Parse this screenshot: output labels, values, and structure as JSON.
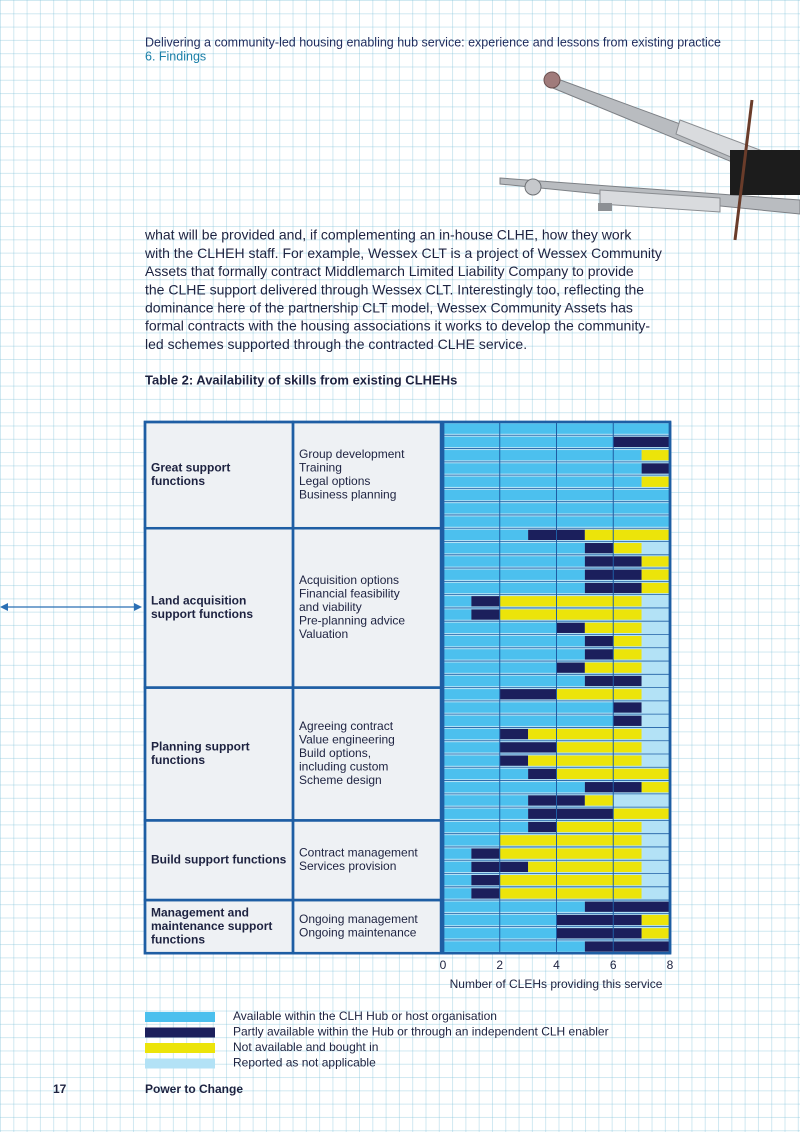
{
  "header": {
    "title": "Delivering a community-led housing enabling hub service: experience and lessons from existing practice",
    "section": "6. Findings"
  },
  "body": {
    "lines": [
      "what will be provided and, if complementing an in-house CLHE, how they work",
      "with the CLHEH staff. For example, Wessex CLT is a project of Wessex Community",
      "Assets that formally contract Middlemarch Limited Liability Company to provide",
      "the CLHE support delivered through Wessex CLT.  Interestingly too, reflecting the",
      "dominance here of the partnership CLT model, Wessex Community Assets has",
      "formal contracts with the housing associations it works to develop the community-",
      "led schemes supported through the contracted CLHE service."
    ]
  },
  "chart_data": {
    "type": "stacked-bar-horizontal",
    "title": "Table 2: Availability of skills from existing CLHEHs",
    "xlabel": "Number of CLEHs providing this service",
    "xlim": [
      0,
      8
    ],
    "xticks": [
      0,
      2,
      4,
      6,
      8
    ],
    "groups": [
      {
        "label": [
          "Great support",
          "functions"
        ],
        "functions": [
          "Group development",
          "Training",
          "Legal options",
          "Business planning"
        ],
        "categories": [
          null,
          null,
          null,
          null,
          null,
          null,
          null,
          null
        ]
      },
      {
        "label": [
          "Land acquisition",
          "support functions"
        ],
        "functions": [
          "Acquisition options",
          "Financial feasibility",
          "and viability",
          "Pre-planning advice",
          "Valuation"
        ],
        "categories": [
          null,
          null,
          null,
          null,
          null,
          null,
          null,
          null,
          null,
          null,
          null,
          null
        ]
      },
      {
        "label": [
          "Planning support",
          "functions"
        ],
        "functions": [
          "Agreeing contract",
          "Value engineering",
          "Build options,",
          "including custom",
          "Scheme design"
        ],
        "categories": [
          null,
          null,
          null,
          null,
          null,
          null,
          null,
          null,
          null,
          null
        ]
      },
      {
        "label": [
          "Build support functions"
        ],
        "functions": [
          "Contract management",
          "Services provision"
        ],
        "categories": [
          null,
          null,
          null,
          null,
          null,
          null
        ]
      },
      {
        "label": [
          "Management and",
          "maintenance support",
          "functions"
        ],
        "functions": [
          "Ongoing management",
          "Ongoing maintenance"
        ],
        "categories": [
          null,
          null,
          null,
          null
        ]
      }
    ],
    "series": [
      {
        "name": "Available within the CLH Hub or host organisation",
        "color": "#4cc0ee",
        "values": [
          8,
          6,
          7,
          7,
          7,
          8,
          8,
          8,
          3,
          5,
          5,
          5,
          5,
          1,
          1,
          4,
          5,
          5,
          4,
          5,
          2,
          6,
          6,
          2,
          2,
          2,
          3,
          5,
          3,
          3,
          3,
          2,
          1,
          1,
          1,
          1,
          5,
          4,
          4,
          5
        ]
      },
      {
        "name": "Partly available within the Hub or through an independent CLH enabler",
        "color": "#1b1f5c",
        "values": [
          0,
          2,
          0,
          1,
          0,
          0,
          0,
          0,
          2,
          1,
          2,
          2,
          2,
          1,
          1,
          1,
          1,
          1,
          1,
          2,
          2,
          1,
          1,
          1,
          2,
          1,
          1,
          2,
          2,
          3,
          1,
          0,
          1,
          2,
          1,
          1,
          3,
          3,
          3,
          3
        ]
      },
      {
        "name": "Not available and bought in",
        "color": "#ece40a",
        "values": [
          0,
          0,
          1,
          0,
          1,
          0,
          0,
          0,
          3,
          1,
          1,
          1,
          1,
          5,
          5,
          2,
          1,
          1,
          2,
          0,
          3,
          0,
          0,
          4,
          3,
          4,
          4,
          1,
          1,
          2,
          3,
          5,
          5,
          4,
          5,
          5,
          0,
          1,
          1,
          0
        ]
      },
      {
        "name": "Reported as not applicable",
        "color": "#b3e2f6",
        "values": [
          0,
          0,
          0,
          0,
          0,
          0,
          0,
          0,
          0,
          1,
          0,
          0,
          0,
          1,
          1,
          1,
          1,
          1,
          1,
          1,
          1,
          1,
          1,
          1,
          1,
          1,
          0,
          0,
          2,
          0,
          1,
          1,
          1,
          1,
          1,
          1,
          0,
          0,
          0,
          0
        ]
      }
    ]
  },
  "footer": {
    "page": "17",
    "publisher": "Power to Change"
  }
}
